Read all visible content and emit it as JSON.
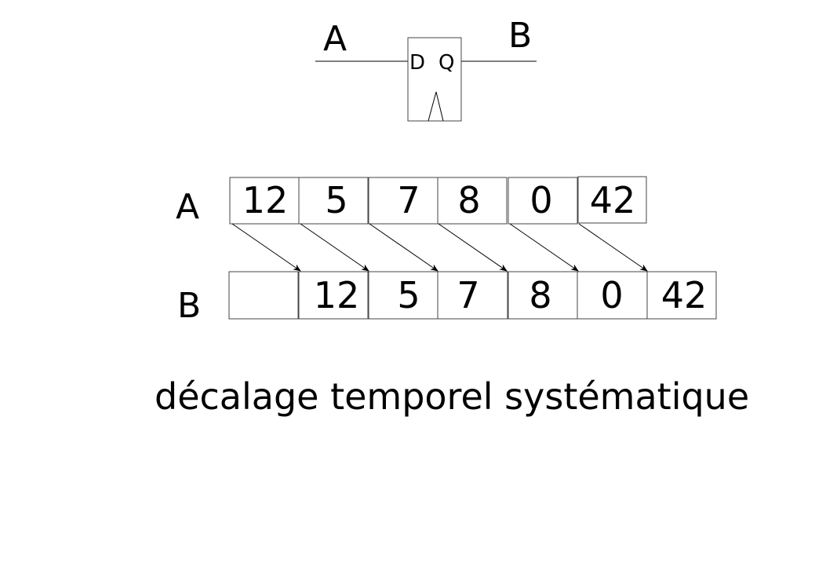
{
  "flipflop": {
    "input_label": "A",
    "output_label": "B",
    "d_pin": "D",
    "q_pin": "Q"
  },
  "sequence": {
    "row_a_label": "A",
    "row_b_label": "B",
    "row_a_values": [
      "12",
      "5",
      "7",
      "8",
      "0",
      "42"
    ],
    "row_b_values": [
      "",
      "12",
      "5",
      "7",
      "8",
      "0",
      "42"
    ]
  },
  "caption": "décalage temporel systématique",
  "colors": {
    "stroke": "#000000",
    "box_stroke": "#444444",
    "background": "#ffffff"
  }
}
